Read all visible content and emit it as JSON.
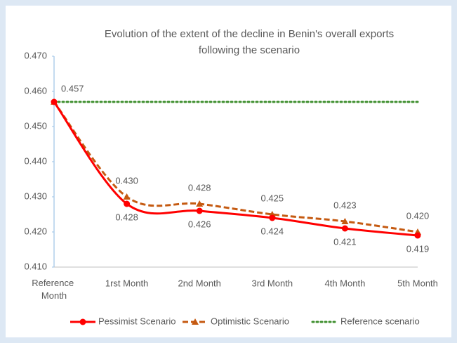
{
  "chart_data": {
    "type": "line",
    "title": [
      "Evolution of the extent of the decline in Benin's overall exports",
      "following the scenario"
    ],
    "categories": [
      "Reference Month",
      "1rst Month",
      "2nd Month",
      "3rd Month",
      "4th Month",
      "5th Month"
    ],
    "series": [
      {
        "name": "Pessimist Scenario",
        "color": "#ff0000",
        "style": "solid",
        "marker": "circle",
        "values": [
          0.457,
          0.428,
          0.426,
          0.424,
          0.421,
          0.419
        ],
        "value_labels": [
          "0.457",
          "0.428",
          "0.426",
          "0.424",
          "0.421",
          "0.419"
        ]
      },
      {
        "name": "Optimistic Scenario",
        "color": "#c55a11",
        "style": "dashed",
        "marker": "triangle",
        "values": [
          0.457,
          0.43,
          0.428,
          0.425,
          0.423,
          0.42
        ],
        "value_labels": [
          null,
          "0.430",
          "0.428",
          "0.425",
          "0.423",
          "0.420"
        ]
      },
      {
        "name": "Reference scenario",
        "color": "#3f8f2f",
        "style": "dotted",
        "marker": "none",
        "values": [
          0.457,
          0.457,
          0.457,
          0.457,
          0.457,
          0.457
        ]
      }
    ],
    "ylim": [
      0.41,
      0.47
    ],
    "yticks": [
      {
        "value": 0.41,
        "label": "0.410"
      },
      {
        "value": 0.42,
        "label": "0.420"
      },
      {
        "value": 0.43,
        "label": "0.430"
      },
      {
        "value": 0.44,
        "label": "0.440"
      },
      {
        "value": 0.45,
        "label": "0.450"
      },
      {
        "value": 0.46,
        "label": "0.460"
      },
      {
        "value": 0.47,
        "label": "0.470"
      }
    ],
    "grid": false,
    "legend": "bottom"
  }
}
